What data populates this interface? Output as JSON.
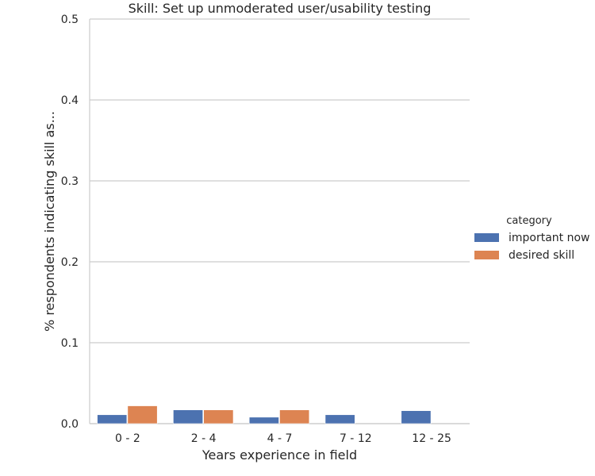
{
  "chart_data": {
    "type": "bar",
    "title": "Skill: Set up unmoderated user/usability testing",
    "xlabel": "Years experience in field",
    "ylabel": "% respondents indicating skill as...",
    "categories": [
      "0 - 2",
      "2 - 4",
      "4 - 7",
      "7 - 12",
      "12 - 25"
    ],
    "ylim": [
      0,
      0.5
    ],
    "yticks": [
      "0.0",
      "0.1",
      "0.2",
      "0.3",
      "0.4",
      "0.5"
    ],
    "grid": true,
    "legend": {
      "title": "category",
      "placement": "right"
    },
    "series": [
      {
        "name": "important now",
        "color": "#4c72b0",
        "values": [
          0.011,
          0.017,
          0.008,
          0.011,
          0.016
        ]
      },
      {
        "name": "desired skill",
        "color": "#dd8452",
        "values": [
          0.022,
          0.017,
          0.017,
          0.0,
          0.0
        ]
      }
    ]
  }
}
